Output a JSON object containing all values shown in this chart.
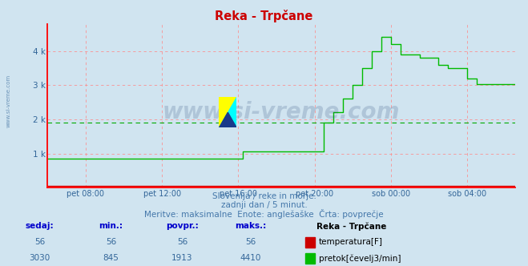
{
  "title": "Reka - Trpčane",
  "bg_color": "#d0e4f0",
  "plot_bg_color": "#d0e4f0",
  "grid_color": "#ff8888",
  "axis_color": "#ff0000",
  "watermark": "www.si-vreme.com",
  "watermark_color": "#1a3a6e",
  "watermark_alpha": 0.18,
  "subtitle1": "Slovenija / reke in morje.",
  "subtitle2": "zadnji dan / 5 minut.",
  "subtitle3": "Meritve: maksimalne  Enote: anglešaške  Črta: povprečje",
  "subtitle_color": "#4477aa",
  "ytick_labels": [
    "",
    "1 k",
    "2 k",
    "3 k",
    "4 k"
  ],
  "yticks": [
    0,
    1000,
    2000,
    3000,
    4000
  ],
  "ylim": [
    0,
    4800
  ],
  "x_tick_labels": [
    "pet 08:00",
    "pet 12:00",
    "pet 16:00",
    "pet 20:00",
    "sob 00:00",
    "sob 04:00"
  ],
  "x_ticks": [
    2,
    6,
    10,
    14,
    18,
    22
  ],
  "xlim": [
    0,
    24.5
  ],
  "flow_color": "#00bb00",
  "flow_avg": 1913,
  "flow_avg_color": "#00aa00",
  "temp_color": "#dd0000",
  "temp_value": 56,
  "temp_min": 56,
  "temp_max": 56,
  "temp_avg": 56,
  "flow_min": 845,
  "flow_max": 4410,
  "flow_sedaj": 3030,
  "flow_avg_val": 1913,
  "table_header_color": "#0000cc",
  "table_value_color": "#336699",
  "legend_title": "Reka - Trpčane",
  "flow_data_x": [
    0,
    10.0,
    10.0,
    10.25,
    10.25,
    14.5,
    14.5,
    15.0,
    15.0,
    15.5,
    15.5,
    16.0,
    16.0,
    16.5,
    16.5,
    17.0,
    17.0,
    17.5,
    17.5,
    18.0,
    18.0,
    18.5,
    18.5,
    19.5,
    19.5,
    20.5,
    20.5,
    21.0,
    21.0,
    22.0,
    22.0,
    22.5,
    22.5,
    24.5
  ],
  "flow_data_y": [
    845,
    845,
    845,
    845,
    1050,
    1050,
    1900,
    1900,
    2200,
    2200,
    2600,
    2600,
    3000,
    3000,
    3500,
    3500,
    4000,
    4000,
    4410,
    4410,
    4200,
    4200,
    3900,
    3900,
    3800,
    3800,
    3600,
    3600,
    3500,
    3500,
    3200,
    3200,
    3030,
    3030
  ],
  "left_watermark": "www.si-vreme.com"
}
